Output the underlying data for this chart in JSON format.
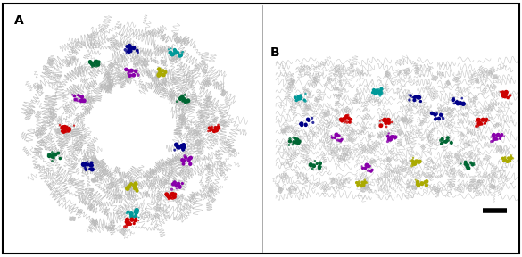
{
  "figsize": [
    5.85,
    2.88
  ],
  "dpi": 100,
  "background_color": "#ffffff",
  "border_color": "#000000",
  "panel_A_label": "A",
  "panel_B_label": "B",
  "scale_bar_color": "#000000",
  "protein_color": "#b8b8b8",
  "chromophore_colors_A": [
    [
      "#8800aa",
      "#8800aa",
      "#8800aa"
    ],
    [
      "#000088",
      "#000088",
      "#006633"
    ],
    [
      "#cc0000",
      "#cc0000",
      "#888888"
    ],
    [
      "#aaaa00",
      "#009999",
      "#009999"
    ],
    [
      "#006633",
      "#009999",
      "#aaaa00"
    ],
    [
      "#000088",
      "#000088",
      "#006633"
    ],
    [
      "#cc0000",
      "#cc0000",
      "#cc0000"
    ],
    [
      "#8800aa",
      "#8800aa",
      "#8800aa"
    ],
    [
      "#cc0000",
      "#cc0000",
      "#cc0000"
    ],
    [
      "#006633",
      "#006633",
      "#000088"
    ],
    [
      "#8800aa",
      "#8800aa",
      "#8800aa"
    ],
    [
      "#aaaa00",
      "#009999",
      "#009999"
    ]
  ],
  "chromophore_colors_B_top": [
    "#009999",
    "#cc0000",
    "#000088",
    "#009999",
    "#000088",
    "#cc0000"
  ],
  "chromophore_colors_B_mid": [
    "#006633",
    "#8800aa",
    "#8800aa",
    "#cc0000",
    "#8800aa",
    "#cc0000"
  ],
  "chromophore_colors_B_bot": [
    "#006633",
    "#8800aa",
    "#aaaa00",
    "#006633",
    "#aaaa00",
    "#aaaa00"
  ]
}
